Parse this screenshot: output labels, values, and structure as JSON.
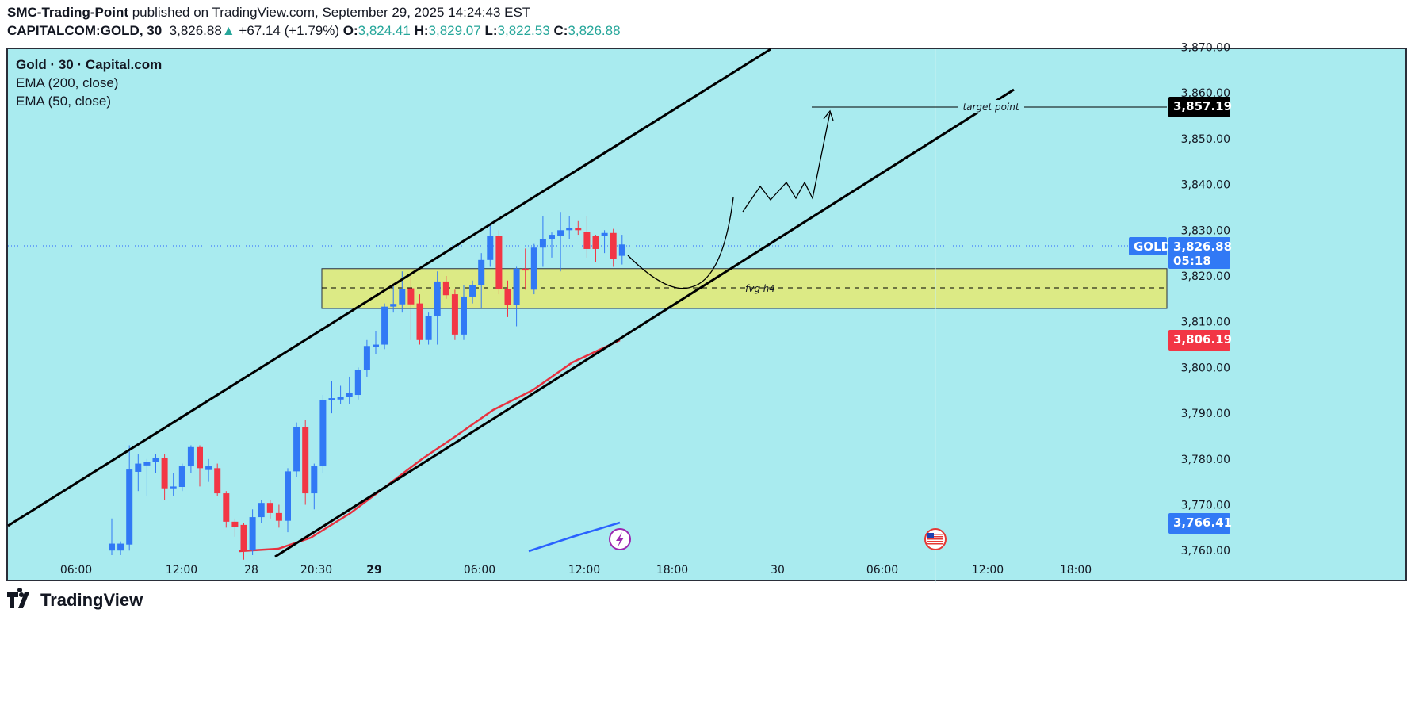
{
  "header": {
    "author": "SMC-Trading-Point",
    "published": "published on TradingView.com, September 29, 2025 14:24:43 EST",
    "symbol": "CAPITALCOM:GOLD, 30",
    "last": "3,826.88",
    "change": "+67.14 (+1.79%)",
    "o_label": "O:",
    "o": "3,824.41",
    "h_label": "H:",
    "h": "3,829.07",
    "l_label": "L:",
    "l": "3,822.53",
    "c_label": "C:",
    "c": "3,826.88"
  },
  "legend": {
    "title": "Gold · 30 · Capital.com",
    "ema200": "EMA (200, close)",
    "ema50": "EMA (50, close)"
  },
  "footer": {
    "brand": "TradingView"
  },
  "colors": {
    "background": "#a9ebef",
    "up": "#3179f5",
    "down": "#f23645",
    "fvg": "#dcea85",
    "ema50": "#e8313f",
    "ema200": "#2962ff"
  },
  "chart_data": {
    "type": "candlestick",
    "ylim": [
      3758,
      3871
    ],
    "y_ticks": [
      "3,870.00",
      "3,860.00",
      "3,850.00",
      "3,840.00",
      "3,830.00",
      "3,820.00",
      "3,810.00",
      "3,800.00",
      "3,790.00",
      "3,780.00",
      "3,770.00",
      "3,760.00"
    ],
    "y_tick_values": [
      3870,
      3860,
      3850,
      3840,
      3830,
      3820,
      3810,
      3800,
      3790,
      3780,
      3770,
      3760
    ],
    "x_ticks": [
      "06:00",
      "12:00",
      "28",
      "20:30",
      "29",
      "06:00",
      "12:00",
      "18:00",
      "30",
      "06:00",
      "12:00",
      "18:00"
    ],
    "x_ticks_bold": [
      false,
      false,
      false,
      false,
      true,
      false,
      false,
      false,
      false,
      false,
      false,
      false
    ],
    "candles_ohlc": [
      [
        3760,
        3767,
        3759,
        3761.5
      ],
      [
        3760,
        3762,
        3759,
        3761.5
      ],
      [
        3761.3,
        3783,
        3760,
        3777.7
      ],
      [
        3777.2,
        3781,
        3773,
        3779
      ],
      [
        3778.6,
        3780,
        3772,
        3779.4
      ],
      [
        3779.4,
        3781,
        3777,
        3780.3
      ],
      [
        3780.3,
        3781,
        3771,
        3773.6
      ],
      [
        3773.6,
        3777,
        3772,
        3774
      ],
      [
        3773.9,
        3779,
        3773,
        3778.4
      ],
      [
        3778.4,
        3783,
        3777,
        3782.6
      ],
      [
        3782.6,
        3783,
        3774,
        3778
      ],
      [
        3777.6,
        3780,
        3775,
        3778.4
      ],
      [
        3778,
        3779,
        3772,
        3772.5
      ],
      [
        3772.5,
        3773,
        3765,
        3766.3
      ],
      [
        3766.3,
        3767,
        3763,
        3765.2
      ],
      [
        3765.6,
        3766,
        3758,
        3760
      ],
      [
        3760,
        3769,
        3759,
        3767.3
      ],
      [
        3767.3,
        3771,
        3766,
        3770.4
      ],
      [
        3770.4,
        3771,
        3767,
        3768.2
      ],
      [
        3768.2,
        3770,
        3765,
        3766.5
      ],
      [
        3766.5,
        3778,
        3764,
        3777.3
      ],
      [
        3777.3,
        3788,
        3776,
        3786.9
      ],
      [
        3786.9,
        3788.5,
        3770,
        3772.5
      ],
      [
        3772.5,
        3779,
        3769,
        3778.4
      ],
      [
        3778.4,
        3794,
        3777,
        3792.8
      ],
      [
        3792.8,
        3797,
        3790,
        3793.3
      ],
      [
        3793,
        3796,
        3792,
        3793.6
      ],
      [
        3793.6,
        3798,
        3792,
        3794.5
      ],
      [
        3794,
        3800,
        3793,
        3799.4
      ],
      [
        3799.4,
        3806,
        3798,
        3804.7
      ],
      [
        3804.5,
        3808,
        3803,
        3805
      ],
      [
        3805,
        3814,
        3804,
        3813.3
      ],
      [
        3813.3,
        3818,
        3812,
        3813.9
      ],
      [
        3813.8,
        3821,
        3812,
        3817.2
      ],
      [
        3817.3,
        3820,
        3806,
        3813.8
      ],
      [
        3814,
        3816,
        3805,
        3806
      ],
      [
        3806,
        3812,
        3805,
        3811.3
      ],
      [
        3811.3,
        3821,
        3805,
        3818.8
      ],
      [
        3818.8,
        3820,
        3815,
        3815.8
      ],
      [
        3816,
        3817,
        3806,
        3807.2
      ],
      [
        3807.2,
        3818,
        3806,
        3815.5
      ],
      [
        3815.5,
        3819,
        3814,
        3818
      ],
      [
        3818,
        3825,
        3813,
        3823.5
      ],
      [
        3823.5,
        3831,
        3822,
        3828.7
      ],
      [
        3828.7,
        3830,
        3816,
        3817.2
      ],
      [
        3817.2,
        3819,
        3811,
        3813.6
      ],
      [
        3813.6,
        3822,
        3809,
        3821.6
      ],
      [
        3821.6,
        3826,
        3817,
        3821.2
      ],
      [
        3817,
        3827,
        3816,
        3826.2
      ],
      [
        3826.2,
        3833,
        3822,
        3828
      ],
      [
        3828,
        3829.5,
        3824,
        3829
      ],
      [
        3828.8,
        3834,
        3821,
        3830
      ],
      [
        3830,
        3833,
        3828,
        3830.5
      ],
      [
        3830.5,
        3832,
        3829,
        3830
      ],
      [
        3829.7,
        3833,
        3824,
        3825.9
      ],
      [
        3828.7,
        3829,
        3823,
        3825.9
      ],
      [
        3828.8,
        3830,
        3825,
        3829.4
      ],
      [
        3829.4,
        3830.3,
        3822,
        3823.8
      ],
      [
        3824.4,
        3829,
        3822.5,
        3826.88
      ]
    ],
    "ema50_label": "3,806.19",
    "ema200_label": "3,766.41",
    "price_label": {
      "symbol": "GOLD",
      "price": "3,826.88",
      "countdown": "05:18"
    },
    "target": {
      "label": "target point",
      "price": "3,857.19"
    },
    "fvg": {
      "label": "fvg h4",
      "top": 3821.6,
      "bottom": 3812.9
    }
  }
}
